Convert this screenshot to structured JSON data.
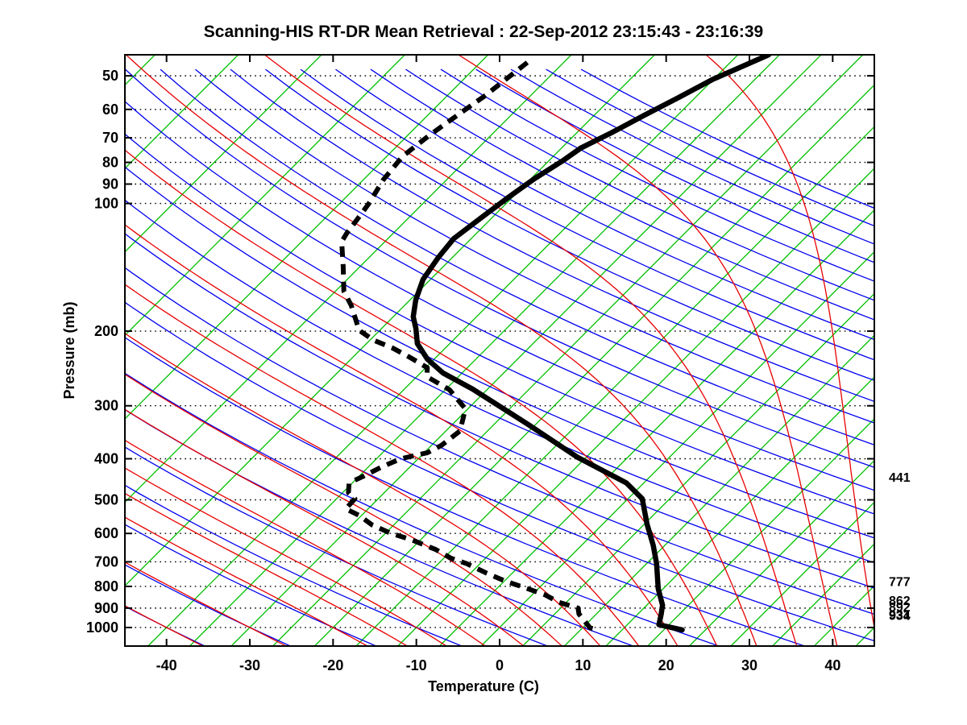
{
  "chart_data": {
    "type": "line",
    "subtype": "skewt-logp-sounding",
    "title": "Scanning-HIS RT-DR Mean Retrieval : 22-Sep-2012 23:15:43 - 23:16:39",
    "xlabel": "Temperature (C)",
    "ylabel": "Pressure (mb)",
    "xlim": [
      -45,
      45
    ],
    "plim": [
      44.6,
      1106
    ],
    "x_ticks": [
      -40,
      -30,
      -20,
      -10,
      0,
      10,
      20,
      30,
      40
    ],
    "y_ticks": [
      50,
      60,
      70,
      80,
      90,
      100,
      200,
      300,
      400,
      500,
      600,
      700,
      800,
      900,
      1000
    ],
    "grid": "dotted horizontal isobars at labeled pressures",
    "legend_position": "none",
    "skew_per_decade": 50.8,
    "colors": {
      "isotherm": "#00c000",
      "dry_adiabat": "#0000ee",
      "moist_adiabat": "#e80000",
      "isobar_dots": "#000000",
      "temperature_curve": "#000000",
      "dewpoint_curve": "#000000",
      "frame": "#000000"
    },
    "background": {
      "isotherms_c_step5": {
        "min": -40,
        "max": 45,
        "step": 5
      },
      "isotherms_c_step10": {
        "min": -120,
        "max": -50,
        "step": 10
      },
      "dry_adiabats_theta_c": {
        "min": -40,
        "max": 240,
        "step": 10
      },
      "moist_adiabat_starts_c_at_1000mb": [
        -60,
        -50,
        -40,
        -30,
        -20,
        -15,
        -10,
        -5,
        0,
        5,
        10,
        15,
        20,
        25,
        30,
        35,
        40,
        45
      ]
    },
    "series": [
      {
        "name": "temperature",
        "style": "solid-thick-black",
        "points_p_mb_T_c": [
          [
            1013,
            22.2
          ],
          [
            985,
            18.8
          ],
          [
            930,
            17.8
          ],
          [
            886,
            16.9
          ],
          [
            810,
            14.4
          ],
          [
            707,
            11.2
          ],
          [
            640,
            8.6
          ],
          [
            570,
            5.3
          ],
          [
            497,
            1.7
          ],
          [
            456,
            -2.1
          ],
          [
            397,
            -11.0
          ],
          [
            332,
            -20.9
          ],
          [
            274,
            -31.8
          ],
          [
            251,
            -37.3
          ],
          [
            233,
            -40.8
          ],
          [
            214,
            -43.9
          ],
          [
            197,
            -45.9
          ],
          [
            185,
            -47.6
          ],
          [
            169,
            -49.3
          ],
          [
            151,
            -50.9
          ],
          [
            134,
            -51.7
          ],
          [
            121,
            -52.1
          ],
          [
            108,
            -51.3
          ],
          [
            97,
            -50.5
          ],
          [
            87.5,
            -49.6
          ],
          [
            79,
            -48.3
          ],
          [
            74,
            -47.7
          ],
          [
            68,
            -45.8
          ],
          [
            62,
            -44.0
          ],
          [
            56.5,
            -42.1
          ],
          [
            51,
            -40.1
          ],
          [
            44.6,
            -36.3
          ]
        ]
      },
      {
        "name": "dewpoint",
        "style": "dashed-thick-black",
        "points_p_mb_T_c": [
          [
            1006,
            11.3
          ],
          [
            1002,
            10.9
          ],
          [
            929,
            7.9
          ],
          [
            900,
            7.1
          ],
          [
            872,
            4.1
          ],
          [
            838,
            1.6
          ],
          [
            808,
            -1.5
          ],
          [
            777,
            -4.9
          ],
          [
            743,
            -8.2
          ],
          [
            707,
            -11.6
          ],
          [
            687,
            -14.1
          ],
          [
            655,
            -17.0
          ],
          [
            620,
            -21.2
          ],
          [
            600,
            -24.3
          ],
          [
            573,
            -27.6
          ],
          [
            544,
            -30.3
          ],
          [
            525,
            -32.7
          ],
          [
            497,
            -32.8
          ],
          [
            481,
            -34.3
          ],
          [
            456,
            -35.4
          ],
          [
            440,
            -34.5
          ],
          [
            418,
            -33.4
          ],
          [
            400,
            -32.1
          ],
          [
            387,
            -29.6
          ],
          [
            372,
            -28.8
          ],
          [
            344,
            -28.3
          ],
          [
            305,
            -30.3
          ],
          [
            275,
            -34.5
          ],
          [
            256,
            -38.8
          ],
          [
            244,
            -39.8
          ],
          [
            230,
            -43.3
          ],
          [
            219,
            -46.4
          ],
          [
            210,
            -49.6
          ],
          [
            199,
            -52.5
          ],
          [
            174,
            -56.4
          ],
          [
            161,
            -59.0
          ],
          [
            141,
            -62.0
          ],
          [
            123,
            -65.2
          ],
          [
            117.5,
            -65.6
          ],
          [
            109,
            -66.0
          ],
          [
            100,
            -66.5
          ],
          [
            88,
            -67.6
          ],
          [
            77.4,
            -68.1
          ],
          [
            69,
            -67.4
          ],
          [
            60.3,
            -66.2
          ],
          [
            56,
            -65.5
          ],
          [
            46,
            -64.3
          ]
        ]
      }
    ],
    "level_labels": [
      {
        "text": "441",
        "pressure": 441
      },
      {
        "text": "777",
        "pressure": 777
      },
      {
        "text": "892",
        "pressure": 892
      },
      {
        "text": "862",
        "pressure": 862
      },
      {
        "text": "934",
        "pressure": 934
      },
      {
        "text": "931",
        "pressure": 931
      }
    ]
  }
}
